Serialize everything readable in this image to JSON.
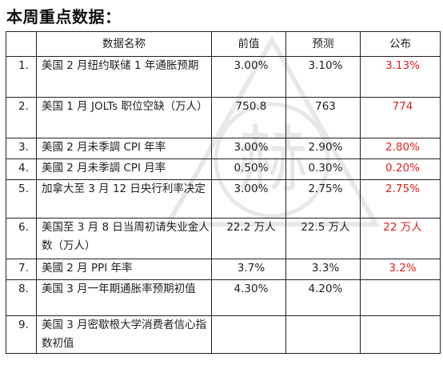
{
  "title": "本周重点数据：",
  "watermark_char": "赫",
  "table": {
    "headers": [
      "",
      "数据名称",
      "前值",
      "预测",
      "公布"
    ],
    "rows": [
      {
        "no": "1.",
        "name": "美国 2 月纽约联储 1 年通胀预期",
        "prev": "3.00%",
        "forecast": "3.10%",
        "actual": "3.13%"
      },
      {
        "no": "2.",
        "name": "美国 1 月 JOLTs 职位空缺（万人）",
        "prev": "750.8",
        "forecast": "763",
        "actual": "774"
      },
      {
        "no": "3.",
        "name": "美國 2 月未季調 CPI 年率",
        "prev": "3.00%",
        "forecast": "2.90%",
        "actual": "2.80%"
      },
      {
        "no": "4.",
        "name": "美國 2 月未季調 CPI 月率",
        "prev": "0.50%",
        "forecast": "0.30%",
        "actual": "0.20%"
      },
      {
        "no": "5.",
        "name": "加拿大至 3 月 12 日央行利率决定",
        "prev": "3.00%",
        "forecast": "2.75%",
        "actual": "2.75%"
      },
      {
        "no": "6.",
        "name": "美国至 3 月 8 日当周初请失业金人数（万人）",
        "prev": "22.2 万人",
        "forecast": "22.5 万人",
        "actual": "22 万人"
      },
      {
        "no": "7.",
        "name": "美國 2 月 PPI 年率",
        "prev": "3.7%",
        "forecast": "3.3%",
        "actual": "3.2%"
      },
      {
        "no": "8.",
        "name": "美国 3 月一年期通胀率预期初值",
        "prev": "4.30%",
        "forecast": "4.20%",
        "actual": ""
      },
      {
        "no": "9.",
        "name": "美国 3 月密歇根大学消费者信心指数初值",
        "prev": "",
        "forecast": "",
        "actual": ""
      }
    ]
  },
  "colors": {
    "published": "#e02020",
    "border": "#222222"
  }
}
